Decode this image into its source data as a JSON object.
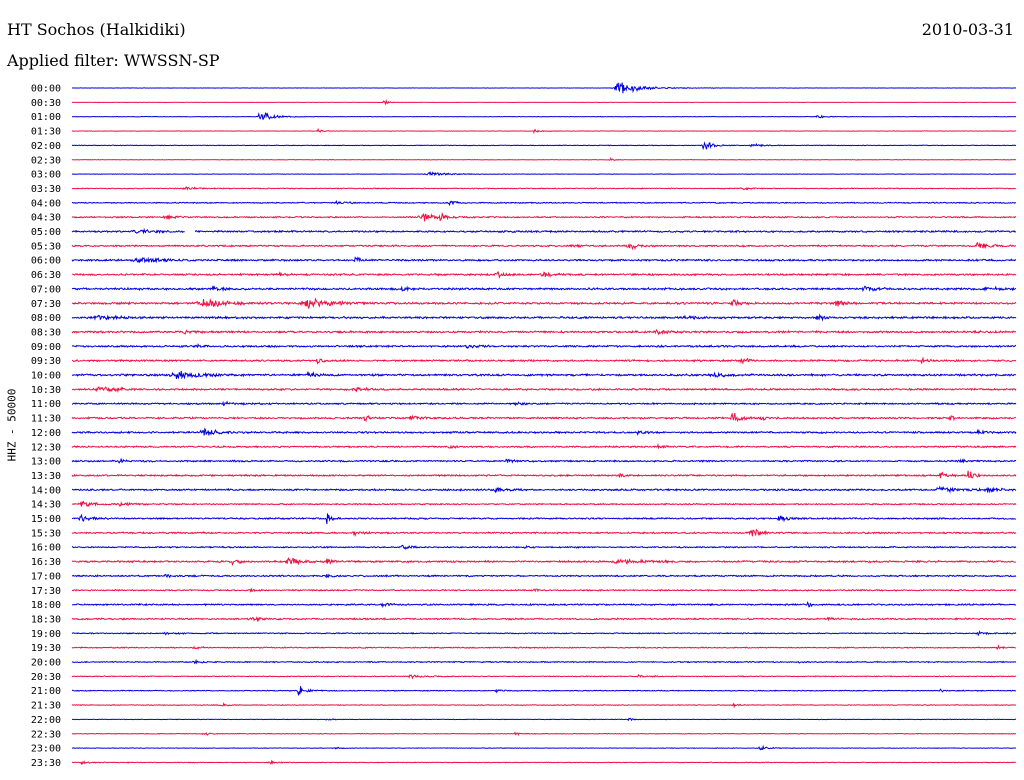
{
  "header": {
    "station": "HT Sochos (Halkidiki)",
    "date": "2010-03-31",
    "filter": "Applied filter: WWSSN-SP"
  },
  "chart_data": {
    "type": "line",
    "title": "HT Sochos (Halkidiki)",
    "ylabel": "HHZ - 50000",
    "xlabel": "",
    "legend": "none",
    "grid": false,
    "colors": [
      "#0000dd",
      "#ee1144"
    ],
    "series": [
      {
        "time": "00:00",
        "color": "#0000dd",
        "noise": 0.15,
        "events": [
          [
            0.58,
            0.02,
            6
          ]
        ]
      },
      {
        "time": "00:30",
        "color": "#ee1144",
        "noise": 0.12,
        "events": [
          [
            0.33,
            0.003,
            5
          ]
        ]
      },
      {
        "time": "01:00",
        "color": "#0000dd",
        "noise": 0.2,
        "events": [
          [
            0.2,
            0.012,
            4.5
          ],
          [
            0.79,
            0.006,
            2
          ]
        ]
      },
      {
        "time": "01:30",
        "color": "#ee1144",
        "noise": 0.2,
        "events": [
          [
            0.26,
            0.005,
            1.5
          ],
          [
            0.49,
            0.006,
            1.5
          ]
        ]
      },
      {
        "time": "02:00",
        "color": "#0000dd",
        "noise": 0.3,
        "events": [
          [
            0.67,
            0.008,
            4
          ],
          [
            0.72,
            0.01,
            1.5
          ]
        ]
      },
      {
        "time": "02:30",
        "color": "#ee1144",
        "noise": 0.2,
        "events": [
          [
            0.57,
            0.004,
            2
          ]
        ]
      },
      {
        "time": "03:00",
        "color": "#0000dd",
        "noise": 0.2,
        "events": [
          [
            0.38,
            0.02,
            1.5
          ]
        ]
      },
      {
        "time": "03:30",
        "color": "#ee1144",
        "noise": 0.4,
        "events": [
          [
            0.12,
            0.01,
            1.5
          ],
          [
            0.71,
            0.005,
            1.5
          ]
        ]
      },
      {
        "time": "04:00",
        "color": "#0000dd",
        "noise": 0.5,
        "events": [
          [
            0.4,
            0.005,
            2.5
          ],
          [
            0.28,
            0.01,
            1.5
          ]
        ]
      },
      {
        "time": "04:30",
        "color": "#ee1144",
        "noise": 0.6,
        "events": [
          [
            0.37,
            0.008,
            6
          ],
          [
            0.39,
            0.008,
            3
          ],
          [
            0.1,
            0.01,
            2
          ]
        ]
      },
      {
        "time": "05:00",
        "color": "#0000dd",
        "noise": 0.8,
        "events": [
          [
            0.07,
            0.02,
            1.5
          ]
        ],
        "gap": [
          0.12,
          0.13
        ]
      },
      {
        "time": "05:30",
        "color": "#ee1144",
        "noise": 0.7,
        "events": [
          [
            0.59,
            0.008,
            4
          ],
          [
            0.96,
            0.01,
            3
          ],
          [
            0.53,
            0.006,
            2
          ]
        ]
      },
      {
        "time": "06:00",
        "color": "#0000dd",
        "noise": 0.8,
        "events": [
          [
            0.07,
            0.02,
            2.5
          ],
          [
            0.3,
            0.006,
            3
          ]
        ]
      },
      {
        "time": "06:30",
        "color": "#ee1144",
        "noise": 0.8,
        "events": [
          [
            0.22,
            0.006,
            2
          ],
          [
            0.45,
            0.006,
            2.5
          ],
          [
            0.5,
            0.01,
            2
          ]
        ]
      },
      {
        "time": "07:00",
        "color": "#0000dd",
        "noise": 0.9,
        "events": [
          [
            0.15,
            0.01,
            2
          ],
          [
            0.35,
            0.005,
            3
          ],
          [
            0.84,
            0.01,
            3
          ],
          [
            0.97,
            0.01,
            2
          ]
        ]
      },
      {
        "time": "07:30",
        "color": "#ee1144",
        "noise": 0.9,
        "events": [
          [
            0.14,
            0.02,
            5
          ],
          [
            0.25,
            0.02,
            4.5
          ],
          [
            0.7,
            0.006,
            3
          ],
          [
            0.81,
            0.006,
            4
          ]
        ]
      },
      {
        "time": "08:00",
        "color": "#0000dd",
        "noise": 0.9,
        "events": [
          [
            0.03,
            0.02,
            1.5
          ],
          [
            0.79,
            0.005,
            3
          ],
          [
            0.65,
            0.01,
            1.5
          ]
        ]
      },
      {
        "time": "08:30",
        "color": "#ee1144",
        "noise": 0.9,
        "events": [
          [
            0.12,
            0.01,
            1.5
          ],
          [
            0.62,
            0.01,
            1.5
          ]
        ]
      },
      {
        "time": "09:00",
        "color": "#0000dd",
        "noise": 0.8,
        "events": [
          [
            0.13,
            0.005,
            2
          ],
          [
            0.42,
            0.01,
            1.5
          ]
        ]
      },
      {
        "time": "09:30",
        "color": "#ee1144",
        "noise": 0.8,
        "events": [
          [
            0.26,
            0.004,
            3
          ],
          [
            0.71,
            0.006,
            2.5
          ],
          [
            0.9,
            0.005,
            2
          ]
        ]
      },
      {
        "time": "10:00",
        "color": "#0000dd",
        "noise": 0.9,
        "events": [
          [
            0.11,
            0.02,
            3.5
          ],
          [
            0.25,
            0.008,
            2
          ],
          [
            0.68,
            0.01,
            2
          ]
        ]
      },
      {
        "time": "10:30",
        "color": "#ee1144",
        "noise": 0.8,
        "events": [
          [
            0.03,
            0.02,
            2
          ],
          [
            0.3,
            0.01,
            2
          ]
        ]
      },
      {
        "time": "11:00",
        "color": "#0000dd",
        "noise": 0.7,
        "events": [
          [
            0.16,
            0.01,
            1.5
          ],
          [
            0.47,
            0.006,
            1.5
          ]
        ]
      },
      {
        "time": "11:30",
        "color": "#ee1144",
        "noise": 0.8,
        "events": [
          [
            0.31,
            0.004,
            3.5
          ],
          [
            0.36,
            0.006,
            3
          ],
          [
            0.7,
            0.008,
            4.5
          ],
          [
            0.73,
            0.005,
            3
          ],
          [
            0.93,
            0.004,
            2.5
          ]
        ]
      },
      {
        "time": "12:00",
        "color": "#0000dd",
        "noise": 0.8,
        "events": [
          [
            0.14,
            0.012,
            4
          ],
          [
            0.6,
            0.006,
            2
          ],
          [
            0.96,
            0.004,
            2.5
          ]
        ]
      },
      {
        "time": "12:30",
        "color": "#ee1144",
        "noise": 0.7,
        "events": [
          [
            0.4,
            0.004,
            2
          ],
          [
            0.62,
            0.006,
            1.5
          ]
        ]
      },
      {
        "time": "13:00",
        "color": "#0000dd",
        "noise": 0.7,
        "events": [
          [
            0.05,
            0.005,
            2.5
          ],
          [
            0.46,
            0.006,
            2
          ],
          [
            0.94,
            0.004,
            2
          ]
        ]
      },
      {
        "time": "13:30",
        "color": "#ee1144",
        "noise": 0.7,
        "events": [
          [
            0.95,
            0.004,
            7
          ],
          [
            0.92,
            0.008,
            3
          ],
          [
            0.58,
            0.005,
            2
          ]
        ]
      },
      {
        "time": "14:00",
        "color": "#0000dd",
        "noise": 0.8,
        "events": [
          [
            0.92,
            0.015,
            3
          ],
          [
            0.97,
            0.008,
            3
          ],
          [
            0.45,
            0.01,
            2
          ]
        ]
      },
      {
        "time": "14:30",
        "color": "#ee1144",
        "noise": 0.6,
        "events": [
          [
            0.01,
            0.01,
            3
          ],
          [
            0.05,
            0.01,
            2
          ]
        ]
      },
      {
        "time": "15:00",
        "color": "#0000dd",
        "noise": 0.7,
        "events": [
          [
            0.01,
            0.008,
            3
          ],
          [
            0.27,
            0.003,
            6
          ],
          [
            0.75,
            0.01,
            2.5
          ]
        ]
      },
      {
        "time": "15:30",
        "color": "#ee1144",
        "noise": 0.7,
        "events": [
          [
            0.3,
            0.01,
            2
          ],
          [
            0.72,
            0.01,
            3.5
          ]
        ]
      },
      {
        "time": "16:00",
        "color": "#0000dd",
        "noise": 0.6,
        "events": [
          [
            0.35,
            0.006,
            2
          ],
          [
            0.48,
            0.006,
            1.5
          ]
        ]
      },
      {
        "time": "16:30",
        "color": "#ee1144",
        "noise": 0.8,
        "events": [
          [
            0.23,
            0.01,
            4.5
          ],
          [
            0.27,
            0.005,
            4
          ],
          [
            0.17,
            0.005,
            2.5
          ],
          [
            0.58,
            0.02,
            2
          ]
        ]
      },
      {
        "time": "17:00",
        "color": "#0000dd",
        "noise": 0.7,
        "events": [
          [
            0.27,
            0.006,
            2
          ],
          [
            0.1,
            0.006,
            1.5
          ]
        ]
      },
      {
        "time": "17:30",
        "color": "#ee1144",
        "noise": 0.6,
        "events": [
          [
            0.49,
            0.004,
            2
          ],
          [
            0.19,
            0.004,
            2
          ]
        ]
      },
      {
        "time": "18:00",
        "color": "#0000dd",
        "noise": 0.7,
        "events": [
          [
            0.78,
            0.003,
            3
          ],
          [
            0.33,
            0.008,
            1.5
          ]
        ]
      },
      {
        "time": "18:30",
        "color": "#ee1144",
        "noise": 0.7,
        "events": [
          [
            0.19,
            0.01,
            2
          ],
          [
            0.8,
            0.008,
            1.5
          ]
        ]
      },
      {
        "time": "19:00",
        "color": "#0000dd",
        "noise": 0.5,
        "events": [
          [
            0.96,
            0.01,
            1.5
          ],
          [
            0.1,
            0.01,
            1.2
          ]
        ]
      },
      {
        "time": "19:30",
        "color": "#ee1144",
        "noise": 0.5,
        "events": [
          [
            0.13,
            0.006,
            1.5
          ],
          [
            0.98,
            0.004,
            2
          ]
        ]
      },
      {
        "time": "20:00",
        "color": "#0000dd",
        "noise": 0.5,
        "events": [
          [
            0.13,
            0.006,
            1.5
          ],
          [
            0.77,
            0.004,
            1.5
          ]
        ]
      },
      {
        "time": "20:30",
        "color": "#ee1144",
        "noise": 0.4,
        "events": [
          [
            0.36,
            0.01,
            1.5
          ],
          [
            0.6,
            0.008,
            1.2
          ]
        ]
      },
      {
        "time": "21:00",
        "color": "#0000dd",
        "noise": 0.4,
        "events": [
          [
            0.24,
            0.006,
            6
          ],
          [
            0.45,
            0.005,
            2
          ],
          [
            0.92,
            0.004,
            1.5
          ]
        ]
      },
      {
        "time": "21:30",
        "color": "#ee1144",
        "noise": 0.35,
        "events": [
          [
            0.7,
            0.004,
            2.5
          ],
          [
            0.16,
            0.005,
            1.2
          ]
        ]
      },
      {
        "time": "22:00",
        "color": "#0000dd",
        "noise": 0.25,
        "events": [
          [
            0.27,
            0.005,
            1.2
          ],
          [
            0.59,
            0.005,
            1.2
          ]
        ]
      },
      {
        "time": "22:30",
        "color": "#ee1144",
        "noise": 0.3,
        "events": [
          [
            0.14,
            0.006,
            1.5
          ],
          [
            0.47,
            0.005,
            1.5
          ]
        ]
      },
      {
        "time": "23:00",
        "color": "#0000dd",
        "noise": 0.25,
        "events": [
          [
            0.73,
            0.008,
            2
          ],
          [
            0.28,
            0.005,
            1.2
          ]
        ]
      },
      {
        "time": "23:30",
        "color": "#ee1144",
        "noise": 0.3,
        "events": [
          [
            0.01,
            0.008,
            1.5
          ],
          [
            0.21,
            0.006,
            1.2
          ]
        ]
      }
    ]
  }
}
